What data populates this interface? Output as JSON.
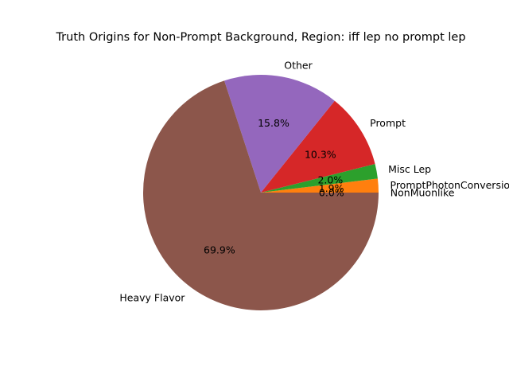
{
  "chart_data": {
    "type": "pie",
    "title": "Truth Origins for Non-Prompt Background, Region: iff lep no prompt lep",
    "slices": [
      {
        "label": "NonMuonlike",
        "value": 0.0,
        "pct_label": "0.0%",
        "color": "#1f77b4"
      },
      {
        "label": "PromptPhotonConversions",
        "value": 1.9,
        "pct_label": "1.9%",
        "color": "#ff7f0e"
      },
      {
        "label": "Misc Lep",
        "value": 2.0,
        "pct_label": "2.0%",
        "color": "#2ca02c"
      },
      {
        "label": "Prompt",
        "value": 10.3,
        "pct_label": "10.3%",
        "color": "#d62728"
      },
      {
        "label": "Other",
        "value": 15.8,
        "pct_label": "15.8%",
        "color": "#9467bd"
      },
      {
        "label": "Heavy Flavor",
        "value": 69.9,
        "pct_label": "69.9%",
        "color": "#8c564b"
      }
    ],
    "start_angle_deg": 0,
    "direction": "counterclockwise",
    "legend": "none"
  }
}
